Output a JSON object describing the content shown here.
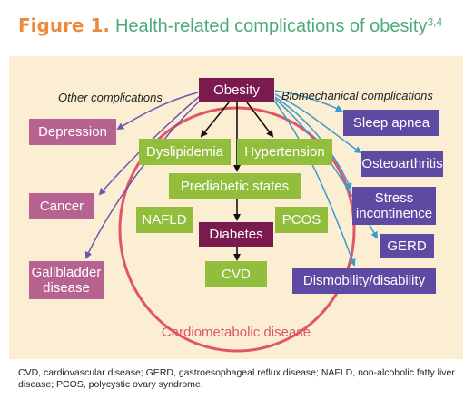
{
  "title": {
    "figure_label": "Figure 1.",
    "text": "Health-related complications of obesity",
    "superscript": "3,4"
  },
  "labels": {
    "other": "Other complications",
    "biomechanical": "Biomechanical complications",
    "cardiometabolic": "Cardiometabolic disease"
  },
  "nodes": {
    "obesity": "Obesity",
    "dyslipidemia": "Dyslipidemia",
    "hypertension": "Hypertension",
    "prediabetic": "Prediabetic states",
    "nafld": "NAFLD",
    "pcos": "PCOS",
    "diabetes": "Diabetes",
    "cvd": "CVD",
    "depression": "Depression",
    "cancer": "Cancer",
    "gallbladder": "Gallbladder disease",
    "sleep_apnea": "Sleep apnea",
    "osteoarthritis": "Osteoarthritis",
    "stress_incontinence": "Stress incontinence",
    "gerd": "GERD",
    "dismobility": "Dismobility/disability"
  },
  "footnote": "CVD, cardiovascular disease; GERD, gastroesophageal reflux disease; NAFLD, non-alcoholic fatty liver disease; PCOS, polycystic ovary syndrome.",
  "colors": {
    "orange": "#ee8a3c",
    "teal_green": "#4faa7b",
    "panel": "#fbeed2",
    "green": "#93bd3c",
    "maroon": "#7a1a4e",
    "mauve": "#b76391",
    "violet": "#5d4ba3",
    "ring": "#e05568",
    "arrow_purple": "#6a58b0",
    "arrow_blue": "#3a9ad0"
  }
}
